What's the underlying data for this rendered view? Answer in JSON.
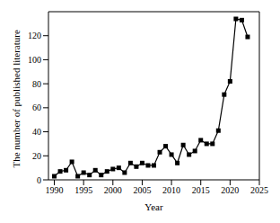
{
  "chart_data": {
    "type": "line",
    "x": [
      1990,
      1991,
      1992,
      1993,
      1994,
      1995,
      1996,
      1997,
      1998,
      1999,
      2000,
      2001,
      2002,
      2003,
      2004,
      2005,
      2006,
      2007,
      2008,
      2009,
      2010,
      2011,
      2012,
      2013,
      2014,
      2015,
      2016,
      2017,
      2018,
      2019,
      2020,
      2021,
      2022,
      2023
    ],
    "values": [
      3,
      7,
      8,
      15,
      3,
      6,
      4,
      8,
      4,
      7,
      9,
      10,
      6,
      14,
      11,
      14,
      12,
      12,
      23,
      28,
      21,
      14,
      29,
      21,
      24,
      33,
      30,
      30,
      41,
      71,
      82,
      134,
      133,
      119
    ],
    "color": "#000000",
    "marker": "square",
    "x_label": "Year",
    "y_label": "The number of published literature",
    "xlim": [
      1989,
      2025
    ],
    "xticks": [
      1990,
      1995,
      2000,
      2005,
      2010,
      2015,
      2020,
      2025
    ],
    "ylim": [
      0,
      140
    ],
    "yticks": [
      0,
      20,
      40,
      60,
      80,
      100,
      120
    ]
  }
}
